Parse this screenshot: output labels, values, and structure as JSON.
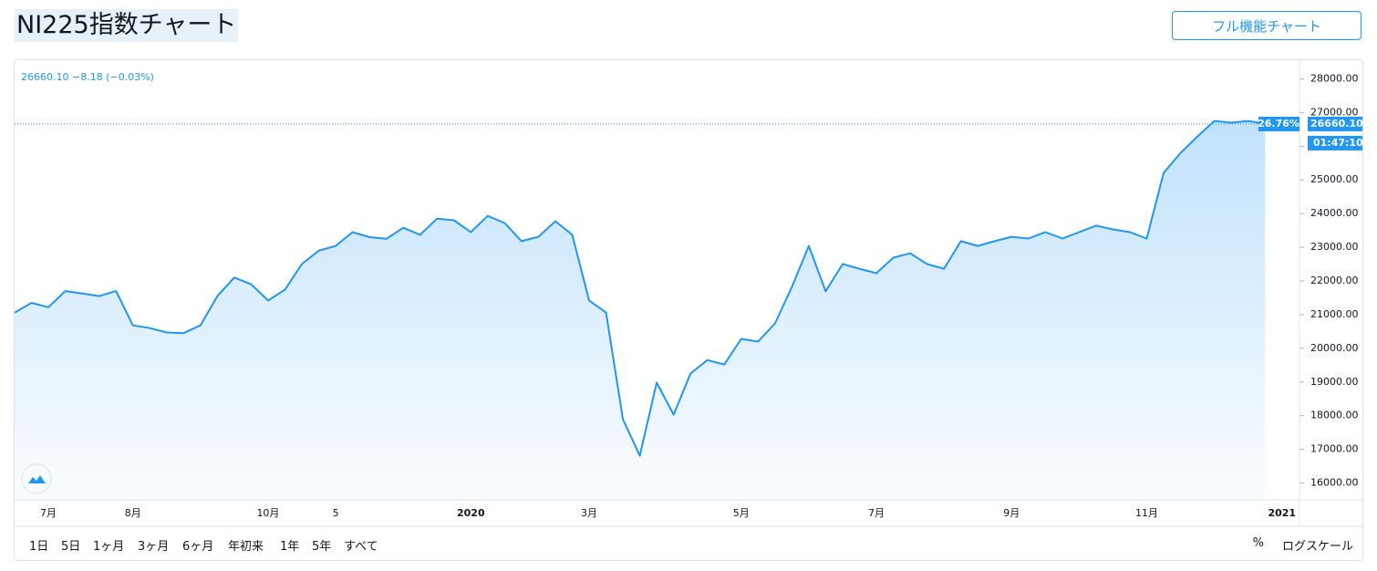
{
  "header": {
    "title": "NI225指数チャート",
    "button": "フル機能チャート"
  },
  "chart_data": {
    "type": "line",
    "legend": "26660.10 −8.18 (−0.03%)",
    "color": "#2196f3",
    "categories": [
      null,
      null,
      "7月",
      null,
      null,
      null,
      null,
      "8月",
      null,
      null,
      null,
      null,
      null,
      null,
      null,
      "10月",
      null,
      null,
      null,
      "5",
      null,
      null,
      null,
      null,
      null,
      null,
      null,
      "2020",
      null,
      null,
      null,
      null,
      null,
      null,
      "3月",
      null,
      null,
      null,
      null,
      null,
      null,
      null,
      null,
      "5月",
      null,
      null,
      null,
      null,
      null,
      null,
      null,
      "7月",
      null,
      null,
      null,
      null,
      null,
      null,
      null,
      "9月",
      null,
      null,
      null,
      null,
      null,
      null,
      null,
      "11月",
      null,
      null,
      null,
      null,
      null,
      null,
      null,
      "2021"
    ],
    "values": [
      21060,
      21350,
      21220,
      21700,
      21630,
      21550,
      21700,
      20680,
      20600,
      20470,
      20450,
      20680,
      21550,
      22100,
      21900,
      21420,
      21740,
      22500,
      22900,
      23040,
      23450,
      23300,
      23250,
      23580,
      23370,
      23850,
      23800,
      23450,
      23930,
      23720,
      23180,
      23310,
      23770,
      23370,
      21420,
      21060,
      17890,
      16810,
      18980,
      18030,
      19250,
      19650,
      19520,
      20280,
      20200,
      20740,
      21820,
      23040,
      21690,
      22500,
      22360,
      22230,
      22690,
      22820,
      22500,
      22360,
      23180,
      23040,
      23180,
      23310,
      23260,
      23450,
      23260,
      23450,
      23640,
      23530,
      23450,
      23260,
      25210,
      25800,
      26290,
      26750,
      26700,
      26750,
      26660.1,
      null
    ],
    "ylim": [
      15500,
      28500
    ],
    "yticks": [
      {
        "value": 16000,
        "label": "16000.00"
      },
      {
        "value": 17000,
        "label": "17000.00"
      },
      {
        "value": 18000,
        "label": "18000.00"
      },
      {
        "value": 19000,
        "label": "19000.00"
      },
      {
        "value": 20000,
        "label": "20000.00"
      },
      {
        "value": 21000,
        "label": "21000.00"
      },
      {
        "value": 22000,
        "label": "22000.00"
      },
      {
        "value": 23000,
        "label": "23000.00"
      },
      {
        "value": 24000,
        "label": "24000.00"
      },
      {
        "value": 25000,
        "label": "25000.00"
      },
      {
        "value": 26000,
        "label": "26000.00"
      },
      {
        "value": 27000,
        "label": "27000.00"
      },
      {
        "value": 28000,
        "label": "28000.00"
      }
    ],
    "last_price": {
      "value": 26660.1,
      "label": "26660.10"
    },
    "change_label": "26.76%",
    "countdown": "01:47:10"
  },
  "toolbar": {
    "ranges": [
      "1日",
      "5日",
      "1ヶ月",
      "3ヶ月",
      "6ヶ月",
      "年初来",
      "1年",
      "5年",
      "すべて"
    ],
    "percent": "%",
    "log_scale": "ログスケール"
  }
}
